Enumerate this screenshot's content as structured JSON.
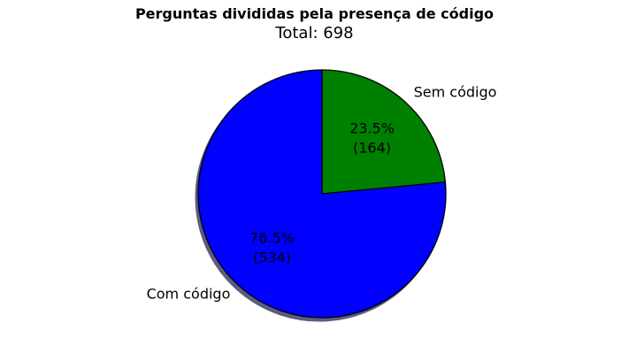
{
  "title": "Perguntas divididas pela presença de código",
  "subtitle": "Total: 698",
  "chart_data": {
    "type": "pie",
    "total": 698,
    "start_angle_deg": 90,
    "direction": "clockwise",
    "shadow": true,
    "slices": [
      {
        "label": "Sem código",
        "value": 164,
        "percent_label": "23.5%",
        "count_label": "(164)",
        "color": "#008000"
      },
      {
        "label": "Com código",
        "value": 534,
        "percent_label": "76.5%",
        "count_label": "(534)",
        "color": "#0000ff"
      }
    ],
    "shadow_color": "#5c5c82",
    "edge_color": "#000000"
  }
}
